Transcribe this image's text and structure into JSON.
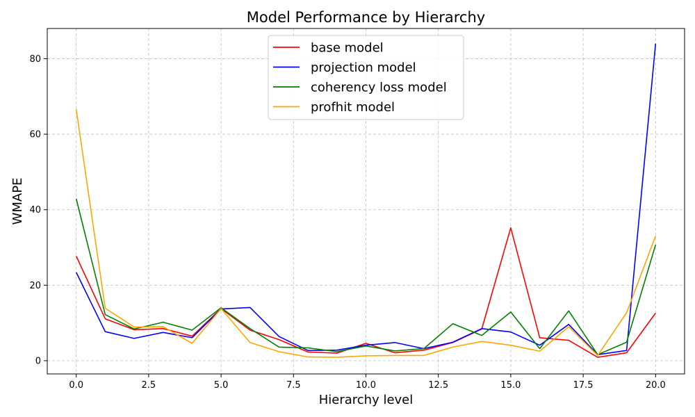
{
  "chart_data": {
    "type": "line",
    "title": "Model Performance by Hierarchy",
    "xlabel": "Hierarchy level",
    "ylabel": "WMAPE",
    "xlim": [
      -1,
      21
    ],
    "ylim": [
      -3.5,
      88
    ],
    "xticks": [
      0,
      2.5,
      5,
      7.5,
      10,
      12.5,
      15,
      17.5,
      20
    ],
    "xtick_labels": [
      "0.0",
      "2.5",
      "5.0",
      "7.5",
      "10.0",
      "12.5",
      "15.0",
      "17.5",
      "20.0"
    ],
    "yticks": [
      0,
      20,
      40,
      60,
      80
    ],
    "ytick_labels": [
      "0",
      "20",
      "40",
      "60",
      "80"
    ],
    "grid": true,
    "legend_position": "top-center",
    "x": [
      0,
      1,
      2,
      3,
      4,
      5,
      6,
      7,
      8,
      9,
      10,
      11,
      12,
      13,
      14,
      15,
      16,
      17,
      18,
      19,
      20
    ],
    "series": [
      {
        "name": "base model",
        "color": "#ff0000",
        "values": [
          27.7,
          11.1,
          8.2,
          8.5,
          6.5,
          13.8,
          8.1,
          5.6,
          2.3,
          2.0,
          4.6,
          2.1,
          2.8,
          4.8,
          8.4,
          35.2,
          6.1,
          5.4,
          0.9,
          2.1,
          12.6
        ]
      },
      {
        "name": "projection model",
        "color": "#0000ff",
        "values": [
          23.4,
          7.7,
          5.9,
          7.5,
          6.1,
          13.7,
          14.1,
          6.4,
          2.7,
          2.8,
          4.1,
          4.8,
          3.2,
          4.9,
          8.5,
          7.6,
          4.1,
          9.6,
          1.6,
          2.7,
          84.0
        ]
      },
      {
        "name": "coherency loss model",
        "color": "#008000",
        "values": [
          42.9,
          12.2,
          8.4,
          10.2,
          8.1,
          14.0,
          8.5,
          3.6,
          3.4,
          2.4,
          3.9,
          2.6,
          3.2,
          9.8,
          6.7,
          12.9,
          3.2,
          13.2,
          1.6,
          4.9,
          30.7
        ]
      },
      {
        "name": "profhit model",
        "color": "#ffa500",
        "values": [
          66.6,
          13.9,
          8.9,
          9.0,
          4.6,
          13.8,
          4.8,
          2.4,
          1.0,
          0.9,
          1.3,
          1.4,
          1.4,
          3.6,
          5.1,
          4.1,
          2.5,
          9.0,
          1.4,
          12.7,
          33.0
        ]
      }
    ]
  }
}
